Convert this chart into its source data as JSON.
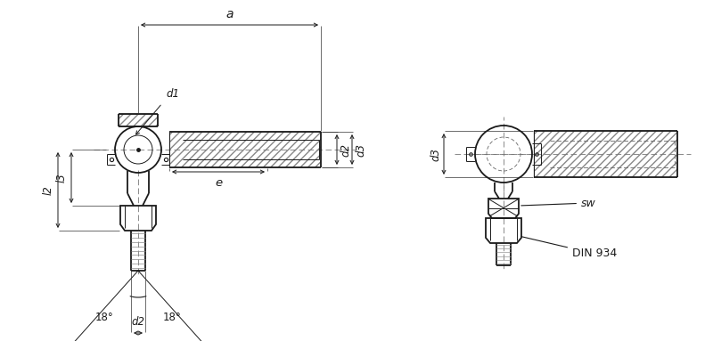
{
  "bg_color": "#ffffff",
  "line_color": "#1a1a1a",
  "dash_color": "#666666",
  "labels": {
    "a": "a",
    "d1": "d1",
    "d2": "d2",
    "d3": "d3",
    "e": "e",
    "l2": "l2",
    "l3": "l3",
    "sw": "sw",
    "din": "DIN 934",
    "angle1": "18°",
    "angle2": "18°"
  },
  "lw_main": 1.3,
  "lw_thin": 0.7,
  "lw_dim": 0.7,
  "lw_dash": 0.6
}
